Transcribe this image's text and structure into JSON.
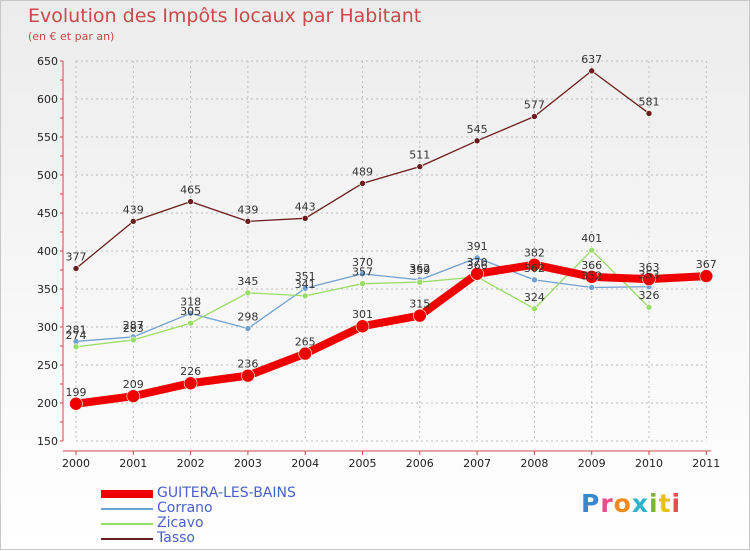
{
  "title": "Evolution des Impôts locaux par Habitant",
  "subtitle": "(en € et par an)",
  "logo_text": "Proxiti",
  "chart_data": {
    "type": "line",
    "title": "Evolution des Impôts locaux par Habitant",
    "subtitle": "(en € et par an)",
    "xlabel": "",
    "ylabel": "",
    "ylim": [
      150,
      650
    ],
    "yticks": [
      150,
      200,
      250,
      300,
      350,
      400,
      450,
      500,
      550,
      600,
      650
    ],
    "categories": [
      "2000",
      "2001",
      "2002",
      "2003",
      "2004",
      "2005",
      "2006",
      "2007",
      "2008",
      "2009",
      "2010",
      "2011"
    ],
    "grid": true,
    "legend_position": "bottom-left",
    "series": [
      {
        "name": "Corrano",
        "color": "#6fa0d0",
        "values": [
          281,
          287,
          318,
          298,
          351,
          370,
          362,
          391,
          362,
          352,
          353,
          null
        ]
      },
      {
        "name": "Zicavo",
        "color": "#99dd66",
        "values": [
          274,
          283,
          305,
          345,
          341,
          357,
          359,
          366,
          324,
          401,
          326,
          null
        ]
      },
      {
        "name": "Tasso",
        "color": "#6b1c1c",
        "values": [
          377,
          439,
          465,
          439,
          443,
          489,
          511,
          545,
          577,
          637,
          581,
          null
        ]
      },
      {
        "name": "GUITERA-LES-BAINS",
        "color": "#ee0000",
        "values": [
          199,
          209,
          226,
          236,
          265,
          301,
          315,
          370,
          382,
          366,
          363,
          367
        ]
      }
    ],
    "legend_order": [
      "GUITERA-LES-BAINS",
      "Corrano",
      "Zicavo",
      "Tasso"
    ]
  }
}
